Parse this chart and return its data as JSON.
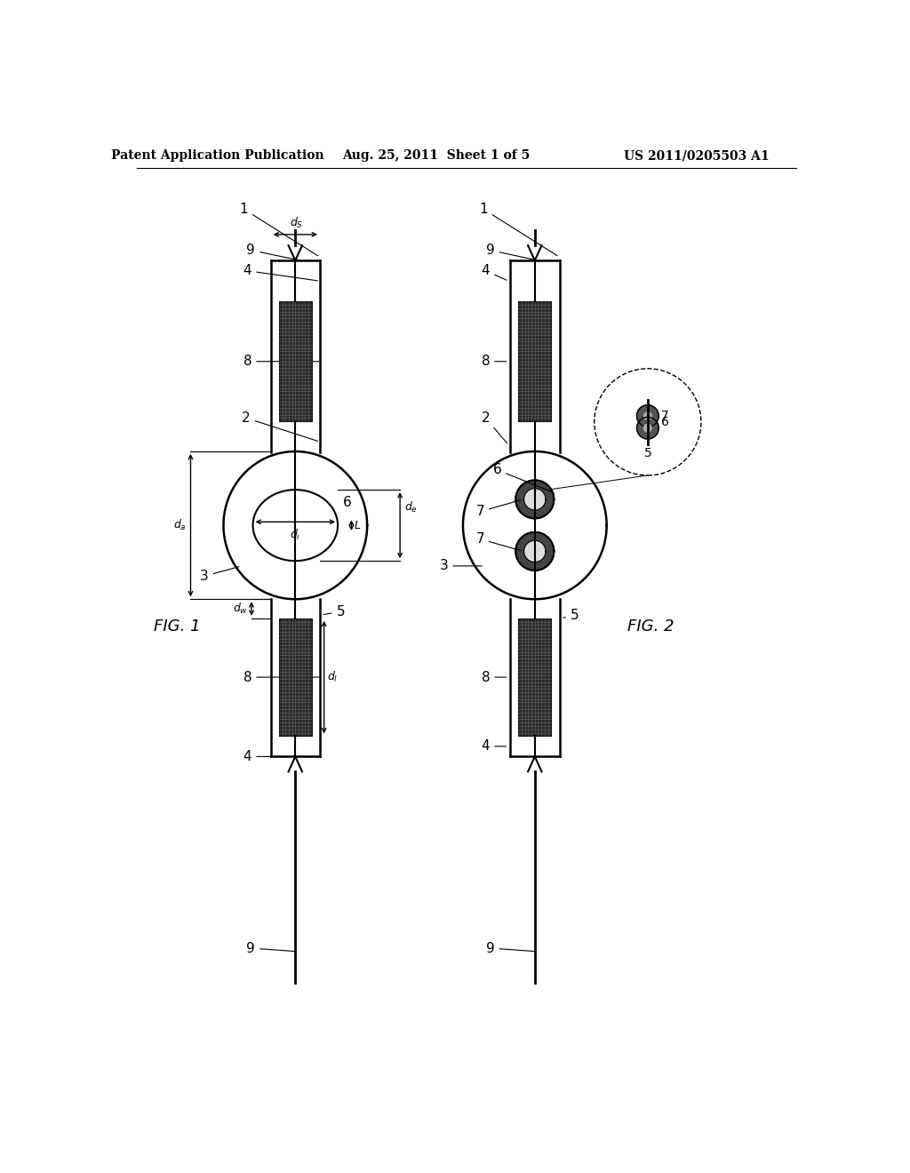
{
  "header_left": "Patent Application Publication",
  "header_mid": "Aug. 25, 2011  Sheet 1 of 5",
  "header_right": "US 2011/0205503 A1",
  "fig1_label": "FIG. 1",
  "fig2_label": "FIG. 2",
  "bg_color": "#ffffff",
  "line_color": "#000000",
  "dark_color": "#222222"
}
